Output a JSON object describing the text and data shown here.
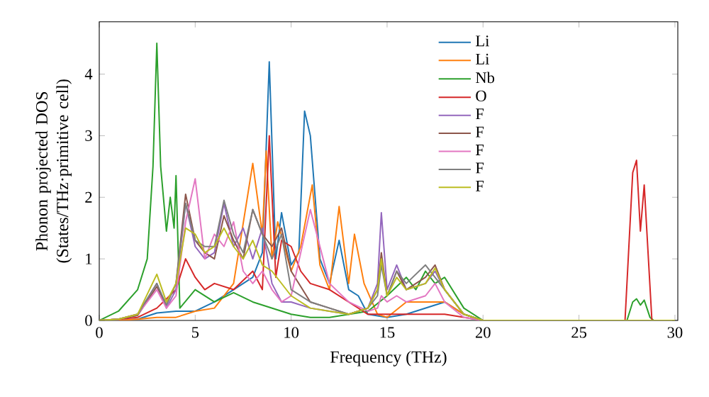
{
  "chart_data": {
    "type": "line",
    "xlabel": "Frequency (THz)",
    "ylabel": "Phonon projected DOS (States/THz·primitive cell)",
    "xlim": [
      0,
      30.15
    ],
    "ylim": [
      0,
      4.85
    ],
    "xticks": [
      0,
      5,
      10,
      15,
      20,
      25,
      30
    ],
    "yticks": [
      0,
      1,
      2,
      3,
      4
    ],
    "legend": "top",
    "x": [
      0,
      1,
      2,
      3,
      3.5,
      4,
      4.5,
      5,
      5.5,
      6,
      6.5,
      7,
      7.5,
      8,
      8.5,
      9,
      9.5,
      10,
      11,
      12,
      13,
      14,
      14.5,
      14.7,
      15,
      15.5,
      16,
      17,
      17.5,
      18,
      19,
      20,
      30
    ],
    "series": [
      {
        "name": "Li",
        "color": "#1f77b4",
        "x": [
          0,
          1,
          2,
          3,
          4,
          5,
          6,
          7,
          8,
          8.5,
          8.86,
          9.2,
          9.5,
          10,
          10.4,
          10.7,
          11,
          11.5,
          12,
          12.5,
          13,
          13.5,
          14,
          15,
          16,
          17,
          18,
          19
        ],
        "values": [
          0,
          0,
          0.02,
          0.12,
          0.15,
          0.15,
          0.3,
          0.5,
          0.7,
          1.1,
          4.2,
          1.0,
          1.75,
          0.9,
          1.1,
          3.4,
          3.0,
          1.0,
          0.6,
          1.3,
          0.5,
          0.4,
          0.1,
          0.05,
          0.1,
          0.2,
          0.3,
          0.1
        ]
      },
      {
        "name": "Li",
        "color": "#ff7f0e",
        "x": [
          0,
          1,
          2,
          3,
          4,
          5,
          6,
          7,
          8,
          8.5,
          8.7,
          9,
          9.3,
          10,
          10.5,
          11.1,
          11.5,
          12,
          12.5,
          13,
          13.3,
          13.8,
          14.5,
          15,
          16,
          17,
          18,
          19,
          20,
          30
        ],
        "values": [
          0,
          0,
          0.02,
          0.05,
          0.05,
          0.15,
          0.2,
          0.6,
          2.55,
          1.4,
          2.75,
          1.0,
          1.6,
          0.8,
          1.2,
          2.2,
          0.9,
          0.5,
          1.85,
          0.6,
          1.4,
          0.6,
          0.1,
          0.05,
          0.3,
          0.3,
          0.3,
          0.1,
          0,
          0
        ]
      },
      {
        "name": "Nb",
        "color": "#2ca02c",
        "x": [
          0,
          1,
          2,
          2.5,
          2.8,
          3.0,
          3.2,
          3.5,
          3.7,
          3.9,
          4.0,
          4.2,
          5,
          6,
          7,
          8,
          9,
          10,
          11,
          12,
          13,
          14,
          15,
          16,
          16.5,
          17,
          17.5,
          18,
          19,
          20,
          27.5,
          27.8,
          28.0,
          28.2,
          28.4,
          28.7,
          28.9,
          30
        ],
        "values": [
          0,
          0.15,
          0.5,
          1.0,
          2.5,
          4.5,
          2.5,
          1.45,
          2.0,
          1.5,
          2.35,
          0.2,
          0.5,
          0.3,
          0.45,
          0.3,
          0.2,
          0.1,
          0.05,
          0.05,
          0.1,
          0.15,
          0.4,
          0.7,
          0.5,
          0.8,
          0.6,
          0.7,
          0.2,
          0,
          0,
          0.3,
          0.35,
          0.25,
          0.33,
          0.05,
          0,
          0
        ]
      },
      {
        "name": "O",
        "color": "#d62728",
        "x": [
          0,
          1,
          2,
          3,
          4,
          4.5,
          5,
          5.5,
          6,
          7,
          8,
          8.5,
          8.86,
          9.2,
          9.5,
          10,
          10.5,
          11,
          12,
          13,
          14,
          15,
          16,
          17,
          18,
          19,
          20,
          27.4,
          27.8,
          28.0,
          28.2,
          28.4,
          28.8,
          30
        ],
        "values": [
          0,
          0.02,
          0.05,
          0.2,
          0.5,
          1.0,
          0.7,
          0.5,
          0.6,
          0.5,
          0.8,
          0.5,
          3.0,
          0.7,
          1.3,
          1.2,
          0.8,
          0.6,
          0.5,
          0.3,
          0.1,
          0.1,
          0.1,
          0.1,
          0.1,
          0.05,
          0,
          0,
          2.4,
          2.6,
          1.45,
          2.2,
          0,
          0
        ]
      },
      {
        "name": "F",
        "color": "#9467bd",
        "values": [
          0,
          0.02,
          0.1,
          0.6,
          0.2,
          0.5,
          1.9,
          1.2,
          1.0,
          1.1,
          1.9,
          1.2,
          1.5,
          1.0,
          1.5,
          0.6,
          0.3,
          0.3,
          0.2,
          0.15,
          0.1,
          0.2,
          0.6,
          1.75,
          0.5,
          0.9,
          0.5,
          0.6,
          0.8,
          0.5,
          0.1,
          0,
          0
        ]
      },
      {
        "name": "F",
        "color": "#8c564b",
        "values": [
          0,
          0.02,
          0.08,
          0.55,
          0.25,
          0.6,
          2.05,
          1.3,
          1.1,
          1.0,
          1.7,
          1.3,
          1.0,
          1.8,
          1.4,
          1.2,
          1.5,
          0.8,
          0.3,
          0.2,
          0.1,
          0.2,
          0.5,
          1.1,
          0.4,
          0.8,
          0.5,
          0.7,
          0.9,
          0.5,
          0.1,
          0,
          0
        ]
      },
      {
        "name": "F",
        "color": "#e377c2",
        "values": [
          0,
          0.02,
          0.1,
          0.5,
          0.2,
          0.4,
          1.6,
          2.3,
          1.0,
          1.4,
          1.2,
          1.6,
          0.8,
          0.6,
          0.8,
          0.5,
          0.3,
          0.4,
          1.8,
          0.6,
          0.3,
          0.15,
          0.2,
          0.4,
          0.3,
          0.4,
          0.3,
          0.4,
          0.6,
          0.3,
          0.05,
          0,
          0
        ]
      },
      {
        "name": "F",
        "color": "#7f7f7f",
        "values": [
          0,
          0.02,
          0.1,
          0.6,
          0.25,
          0.6,
          1.9,
          1.3,
          1.2,
          1.2,
          1.95,
          1.4,
          1.1,
          1.8,
          1.4,
          1.0,
          1.4,
          0.5,
          0.3,
          0.2,
          0.1,
          0.2,
          0.4,
          0.9,
          0.4,
          0.8,
          0.6,
          0.9,
          0.7,
          0.5,
          0.1,
          0,
          0
        ]
      },
      {
        "name": "F",
        "color": "#bcbd22",
        "values": [
          0,
          0.02,
          0.1,
          0.75,
          0.3,
          0.6,
          1.5,
          1.4,
          1.1,
          1.2,
          1.5,
          1.2,
          1.0,
          1.3,
          0.9,
          0.8,
          0.6,
          0.4,
          0.2,
          0.15,
          0.1,
          0.2,
          0.5,
          1.0,
          0.4,
          0.7,
          0.5,
          0.6,
          0.85,
          0.5,
          0.1,
          0,
          0
        ]
      }
    ]
  }
}
